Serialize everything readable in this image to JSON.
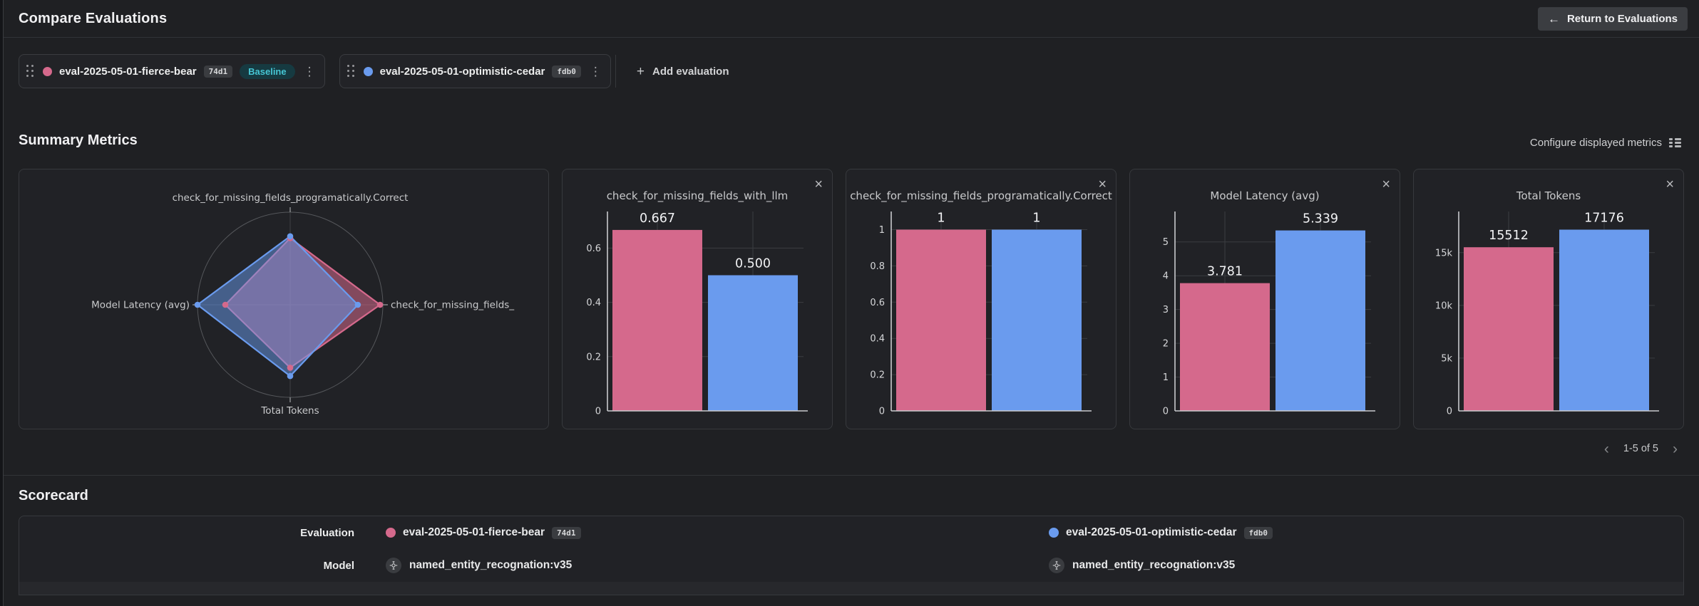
{
  "header": {
    "title": "Compare Evaluations",
    "return_label": "Return to Evaluations"
  },
  "toolbar": {
    "add_label": "Add evaluation"
  },
  "evaluations": [
    {
      "name": "eval-2025-05-01-fierce-bear",
      "hash": "74d1",
      "color": "#d5698c",
      "baseline_label": "Baseline"
    },
    {
      "name": "eval-2025-05-01-optimistic-cedar",
      "hash": "fdb0",
      "color": "#6a9bee"
    }
  ],
  "summary": {
    "title": "Summary Metrics",
    "configure_label": "Configure displayed metrics",
    "pagination": "1-5 of 5"
  },
  "scorecard": {
    "title": "Scorecard",
    "row_labels": {
      "evaluation": "Evaluation",
      "model": "Model"
    },
    "columns": [
      {
        "evaluation": "eval-2025-05-01-fierce-bear",
        "hash": "74d1",
        "model": "named_entity_recognation:v35",
        "color": "#d5698c"
      },
      {
        "evaluation": "eval-2025-05-01-optimistic-cedar",
        "hash": "fdb0",
        "model": "named_entity_recognation:v35",
        "color": "#6a9bee"
      }
    ]
  },
  "chart_data": [
    {
      "type": "radar",
      "axes": [
        {
          "position": "top",
          "label": "check_for_missing_fields_programatically.Correct"
        },
        {
          "position": "right",
          "label": "check_for_missing_fields_"
        },
        {
          "position": "bottom",
          "label": "Total Tokens"
        },
        {
          "position": "left",
          "label": "Model Latency (avg)"
        }
      ],
      "series": [
        {
          "name": "eval-2025-05-01-fierce-bear",
          "color": "#d5698c",
          "fractions": [
            0.72,
            0.97,
            0.68,
            0.7
          ]
        },
        {
          "name": "eval-2025-05-01-optimistic-cedar",
          "color": "#6a9bee",
          "fractions": [
            0.74,
            0.73,
            0.77,
            1.0
          ]
        }
      ]
    },
    {
      "type": "bar",
      "title": "check_for_missing_fields_with_llm",
      "categories": [
        "eval-2025-05-01-fierce-bear",
        "eval-2025-05-01-optimistic-cedar"
      ],
      "values": [
        0.667,
        0.5
      ],
      "value_labels": [
        "0.667",
        "0.500"
      ],
      "yticks": [
        0,
        0.2,
        0.4,
        0.6
      ],
      "ytick_labels": [
        "0",
        "0.2",
        "0.4",
        "0.6"
      ],
      "ymax": 0.735,
      "colors": [
        "#d5698c",
        "#6a9bee"
      ]
    },
    {
      "type": "bar",
      "title": "check_for_missing_fields_programatically.Correct",
      "categories": [
        "eval-2025-05-01-fierce-bear",
        "eval-2025-05-01-optimistic-cedar"
      ],
      "values": [
        1,
        1
      ],
      "value_labels": [
        "1",
        "1"
      ],
      "yticks": [
        0,
        0.2,
        0.4,
        0.6,
        0.8,
        1
      ],
      "ytick_labels": [
        "0",
        "0.2",
        "0.4",
        "0.6",
        "0.8",
        "1"
      ],
      "ymax": 1.1,
      "colors": [
        "#d5698c",
        "#6a9bee"
      ]
    },
    {
      "type": "bar",
      "title": "Model Latency (avg)",
      "categories": [
        "eval-2025-05-01-fierce-bear",
        "eval-2025-05-01-optimistic-cedar"
      ],
      "values": [
        3.781,
        5.339
      ],
      "value_labels": [
        "3.781",
        "5.339"
      ],
      "yticks": [
        0,
        1,
        2,
        3,
        4,
        5
      ],
      "ytick_labels": [
        "0",
        "1",
        "2",
        "3",
        "4",
        "5"
      ],
      "ymax": 5.9,
      "colors": [
        "#d5698c",
        "#6a9bee"
      ]
    },
    {
      "type": "bar",
      "title": "Total Tokens",
      "categories": [
        "eval-2025-05-01-fierce-bear",
        "eval-2025-05-01-optimistic-cedar"
      ],
      "values": [
        15512,
        17176
      ],
      "value_labels": [
        "15512",
        "17176"
      ],
      "yticks": [
        0,
        5000,
        10000,
        15000
      ],
      "ytick_labels": [
        "0",
        "5k",
        "10k",
        "15k"
      ],
      "ymax": 18900,
      "colors": [
        "#d5698c",
        "#6a9bee"
      ]
    }
  ]
}
